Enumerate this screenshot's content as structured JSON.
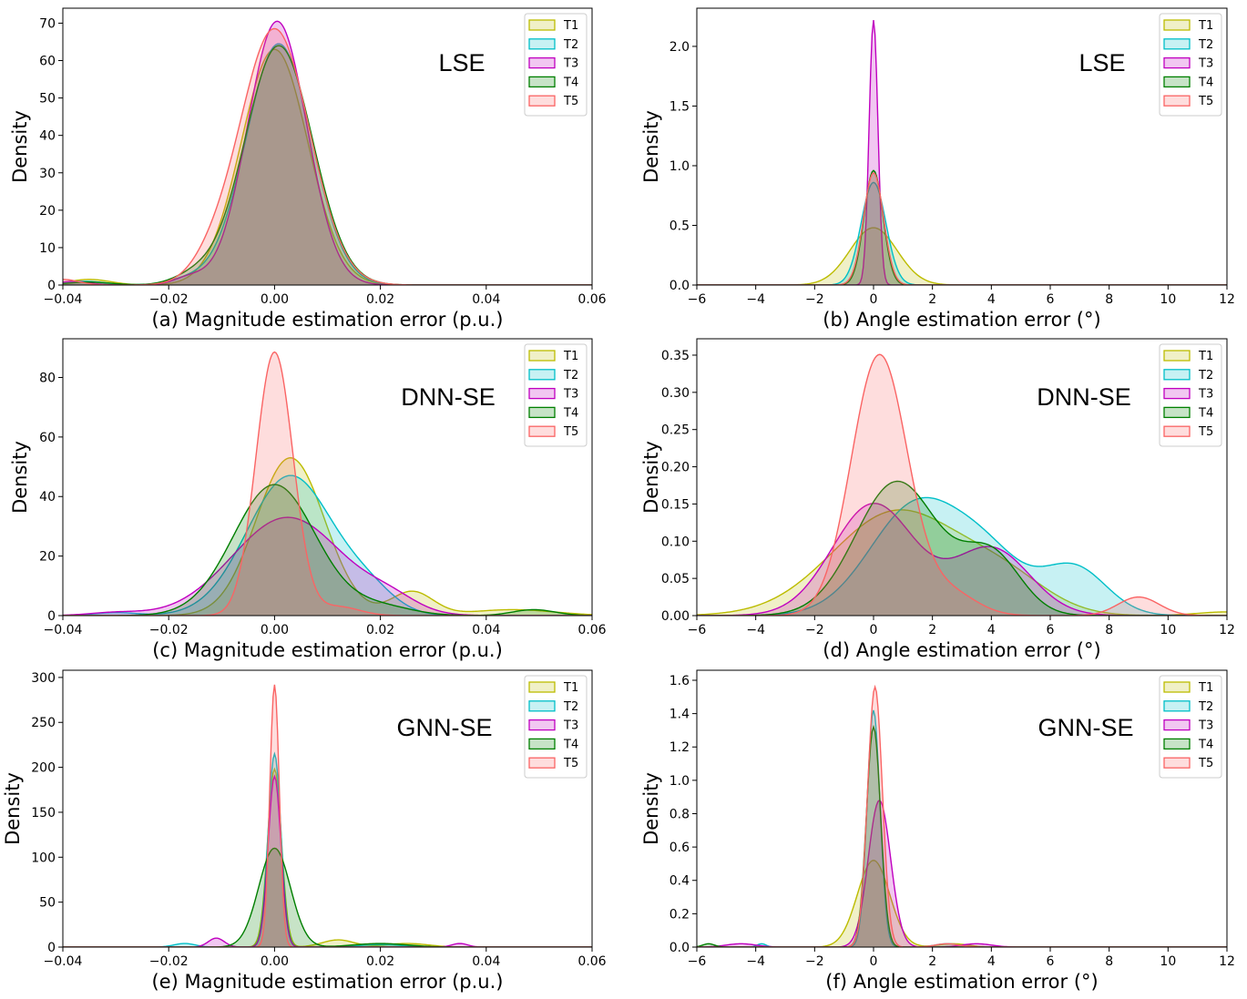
{
  "chart_data": [
    {
      "id": "a",
      "type": "area",
      "method": "LSE",
      "xlabel": "(a) Magnitude estimation error (p.u.)",
      "ylabel": "Density",
      "xlim": [
        -0.04,
        0.06
      ],
      "ylim": [
        0,
        74
      ],
      "xticks": [
        -0.04,
        -0.02,
        0.0,
        0.02,
        0.04,
        0.06
      ],
      "xtick_labels": [
        "−0.04",
        "−0.02",
        "0.00",
        "0.02",
        "0.04",
        "0.06"
      ],
      "yticks": [
        0,
        10,
        20,
        30,
        40,
        50,
        60,
        70
      ],
      "ytick_labels": [
        "0",
        "10",
        "20",
        "30",
        "40",
        "50",
        "60",
        "70"
      ],
      "series": [
        {
          "name": "T1",
          "comps": [
            [
              63,
              0.0,
              0.0063
            ],
            [
              1.5,
              -0.035,
              0.004
            ]
          ]
        },
        {
          "name": "T2",
          "comps": [
            [
              64.5,
              0.0008,
              0.0062
            ],
            [
              1.0,
              -0.036,
              0.004
            ],
            [
              1.5,
              -0.016,
              0.004
            ]
          ]
        },
        {
          "name": "T3",
          "comps": [
            [
              70.5,
              0.0005,
              0.0056
            ],
            [
              1.0,
              -0.038,
              0.003
            ],
            [
              2.0,
              -0.016,
              0.003
            ]
          ]
        },
        {
          "name": "T4",
          "comps": [
            [
              64.0,
              0.0008,
              0.0064
            ],
            [
              0.8,
              -0.035,
              0.004
            ],
            [
              2.5,
              -0.015,
              0.004
            ]
          ]
        },
        {
          "name": "T5",
          "comps": [
            [
              68.5,
              0.0,
              0.0066
            ],
            [
              1.5,
              -0.04,
              0.003
            ],
            [
              3.5,
              -0.012,
              0.004
            ]
          ]
        }
      ]
    },
    {
      "id": "b",
      "type": "area",
      "method": "LSE",
      "xlabel": "(b) Angle estimation error (°)",
      "ylabel": "Density",
      "xlim": [
        -6,
        12
      ],
      "ylim": [
        0,
        2.32
      ],
      "xticks": [
        -6,
        -4,
        -2,
        0,
        2,
        4,
        6,
        8,
        10,
        12
      ],
      "xtick_labels": [
        "−6",
        "−4",
        "−2",
        "0",
        "2",
        "4",
        "6",
        "8",
        "10",
        "12"
      ],
      "yticks": [
        0,
        0.5,
        1.0,
        1.5,
        2.0
      ],
      "ytick_labels": [
        "0.0",
        "0.5",
        "1.0",
        "1.5",
        "2.0"
      ],
      "series": [
        {
          "name": "T1",
          "comps": [
            [
              0.48,
              0.0,
              0.8
            ]
          ]
        },
        {
          "name": "T2",
          "comps": [
            [
              0.86,
              0.0,
              0.42
            ]
          ]
        },
        {
          "name": "T3",
          "comps": [
            [
              2.22,
              0.0,
              0.15
            ]
          ]
        },
        {
          "name": "T4",
          "comps": [
            [
              0.96,
              0.0,
              0.32
            ]
          ]
        },
        {
          "name": "T5",
          "comps": [
            [
              0.94,
              0.0,
              0.34
            ]
          ]
        }
      ]
    },
    {
      "id": "c",
      "type": "area",
      "method": "DNN-SE",
      "xlabel": "(c) Magnitude estimation error (p.u.)",
      "ylabel": "Density",
      "xlim": [
        -0.04,
        0.06
      ],
      "ylim": [
        0,
        93
      ],
      "xticks": [
        -0.04,
        -0.02,
        0.0,
        0.02,
        0.04,
        0.06
      ],
      "xtick_labels": [
        "−0.04",
        "−0.02",
        "0.00",
        "0.02",
        "0.04",
        "0.06"
      ],
      "yticks": [
        0,
        20,
        40,
        60,
        80
      ],
      "ytick_labels": [
        "0",
        "20",
        "40",
        "60",
        "80"
      ],
      "series": [
        {
          "name": "T1",
          "comps": [
            [
              53,
              0.003,
              0.0065
            ],
            [
              8,
              0.026,
              0.004
            ],
            [
              2,
              0.045,
              0.008
            ]
          ]
        },
        {
          "name": "T2",
          "comps": [
            [
              47,
              0.003,
              0.0082
            ],
            [
              6,
              0.018,
              0.005
            ],
            [
              1,
              -0.03,
              0.004
            ]
          ]
        },
        {
          "name": "T3",
          "comps": [
            [
              33,
              0.0025,
              0.0105
            ],
            [
              4,
              0.022,
              0.005
            ],
            [
              1,
              -0.03,
              0.005
            ]
          ]
        },
        {
          "name": "T4",
          "comps": [
            [
              44,
              0.0,
              0.0078
            ],
            [
              2,
              0.049,
              0.004
            ],
            [
              3,
              0.02,
              0.006
            ]
          ]
        },
        {
          "name": "T5",
          "comps": [
            [
              88.5,
              0.0,
              0.0035
            ],
            [
              3,
              0.012,
              0.004
            ]
          ]
        }
      ]
    },
    {
      "id": "d",
      "type": "area",
      "method": "DNN-SE",
      "xlabel": "(d) Angle estimation error (°)",
      "ylabel": "Density",
      "xlim": [
        -6,
        12
      ],
      "ylim": [
        0,
        0.372
      ],
      "xticks": [
        -6,
        -4,
        -2,
        0,
        2,
        4,
        6,
        8,
        10,
        12
      ],
      "xtick_labels": [
        "−6",
        "−4",
        "−2",
        "0",
        "2",
        "4",
        "6",
        "8",
        "10",
        "12"
      ],
      "yticks": [
        0,
        0.05,
        0.1,
        0.15,
        0.2,
        0.25,
        0.3,
        0.35
      ],
      "ytick_labels": [
        "0.00",
        "0.05",
        "0.10",
        "0.15",
        "0.20",
        "0.25",
        "0.30",
        "0.35"
      ],
      "series": [
        {
          "name": "T1",
          "comps": [
            [
              0.14,
              0.8,
              2.2
            ],
            [
              0.04,
              4.5,
              1.5
            ],
            [
              0.005,
              12,
              1.0
            ]
          ]
        },
        {
          "name": "T2",
          "comps": [
            [
              0.15,
              1.5,
              1.6
            ],
            [
              0.06,
              4.0,
              1.2
            ],
            [
              0.065,
              6.8,
              1.1
            ]
          ]
        },
        {
          "name": "T3",
          "comps": [
            [
              0.15,
              0.0,
              1.4
            ],
            [
              0.09,
              4.0,
              1.3
            ]
          ]
        },
        {
          "name": "T4",
          "comps": [
            [
              0.18,
              0.8,
              1.4
            ],
            [
              0.08,
              4.0,
              1.0
            ]
          ]
        },
        {
          "name": "T5",
          "comps": [
            [
              0.35,
              0.2,
              0.95
            ],
            [
              0.025,
              9.0,
              0.7
            ],
            [
              0.03,
              2.6,
              0.9
            ]
          ]
        }
      ]
    },
    {
      "id": "e",
      "type": "area",
      "method": "GNN-SE",
      "xlabel": "(e) Magnitude estimation error (p.u.)",
      "ylabel": "Density",
      "xlim": [
        -0.04,
        0.06
      ],
      "ylim": [
        0,
        308
      ],
      "xticks": [
        -0.04,
        -0.02,
        0.0,
        0.02,
        0.04,
        0.06
      ],
      "xtick_labels": [
        "−0.04",
        "−0.02",
        "0.00",
        "0.02",
        "0.04",
        "0.06"
      ],
      "yticks": [
        0,
        50,
        100,
        150,
        200,
        250,
        300
      ],
      "ytick_labels": [
        "0",
        "50",
        "100",
        "150",
        "200",
        "250",
        "300"
      ],
      "series": [
        {
          "name": "T1",
          "comps": [
            [
              198,
              0.0,
              0.0013
            ],
            [
              8,
              0.012,
              0.003
            ],
            [
              4,
              0.025,
              0.004
            ]
          ]
        },
        {
          "name": "T2",
          "comps": [
            [
              215,
              0.0,
              0.0012
            ],
            [
              4,
              -0.017,
              0.002
            ],
            [
              3,
              0.02,
              0.004
            ]
          ]
        },
        {
          "name": "T3",
          "comps": [
            [
              190,
              0.0,
              0.0012
            ],
            [
              10,
              -0.011,
              0.0015
            ],
            [
              4,
              0.035,
              0.0015
            ]
          ]
        },
        {
          "name": "T4",
          "comps": [
            [
              110,
              0.0,
              0.003
            ],
            [
              4,
              0.02,
              0.005
            ]
          ]
        },
        {
          "name": "T5",
          "comps": [
            [
              292,
              0.0,
              0.0009
            ]
          ]
        }
      ]
    },
    {
      "id": "f",
      "type": "area",
      "method": "GNN-SE",
      "xlabel": "(f) Angle estimation error (°)",
      "ylabel": "Density",
      "xlim": [
        -6,
        12
      ],
      "ylim": [
        0,
        1.66
      ],
      "xticks": [
        -6,
        -4,
        -2,
        0,
        2,
        4,
        6,
        8,
        10,
        12
      ],
      "xtick_labels": [
        "−6",
        "−4",
        "−2",
        "0",
        "2",
        "4",
        "6",
        "8",
        "10",
        "12"
      ],
      "yticks": [
        0,
        0.2,
        0.4,
        0.6,
        0.8,
        1.0,
        1.2,
        1.4,
        1.6
      ],
      "ytick_labels": [
        "0.0",
        "0.2",
        "0.4",
        "0.6",
        "0.8",
        "1.0",
        "1.2",
        "1.4",
        "1.6"
      ],
      "series": [
        {
          "name": "T1",
          "comps": [
            [
              0.52,
              0.0,
              0.55
            ],
            [
              0.02,
              2.7,
              0.5
            ]
          ]
        },
        {
          "name": "T2",
          "comps": [
            [
              1.42,
              0.0,
              0.22
            ],
            [
              0.02,
              -3.8,
              0.15
            ],
            [
              0.02,
              2.5,
              0.4
            ]
          ]
        },
        {
          "name": "T3",
          "comps": [
            [
              0.88,
              0.2,
              0.38
            ],
            [
              0.02,
              -4.5,
              0.5
            ],
            [
              0.02,
              3.5,
              0.5
            ]
          ]
        },
        {
          "name": "T4",
          "comps": [
            [
              1.32,
              0.0,
              0.24
            ],
            [
              0.02,
              -5.6,
              0.2
            ]
          ]
        },
        {
          "name": "T5",
          "comps": [
            [
              1.56,
              0.05,
              0.25
            ],
            [
              0.02,
              2.5,
              0.4
            ]
          ]
        }
      ]
    }
  ],
  "legend_labels": [
    "T1",
    "T2",
    "T3",
    "T4",
    "T5"
  ],
  "colors": {
    "T1": {
      "edge": "#bcbc00",
      "fill": "#bcbc00"
    },
    "T2": {
      "edge": "#00bfc8",
      "fill": "#00bfc8"
    },
    "T3": {
      "edge": "#c000c0",
      "fill": "#c000c0"
    },
    "T4": {
      "edge": "#007f00",
      "fill": "#007f00"
    },
    "T5": {
      "edge": "#fa6464",
      "fill": "#fa6464"
    }
  }
}
